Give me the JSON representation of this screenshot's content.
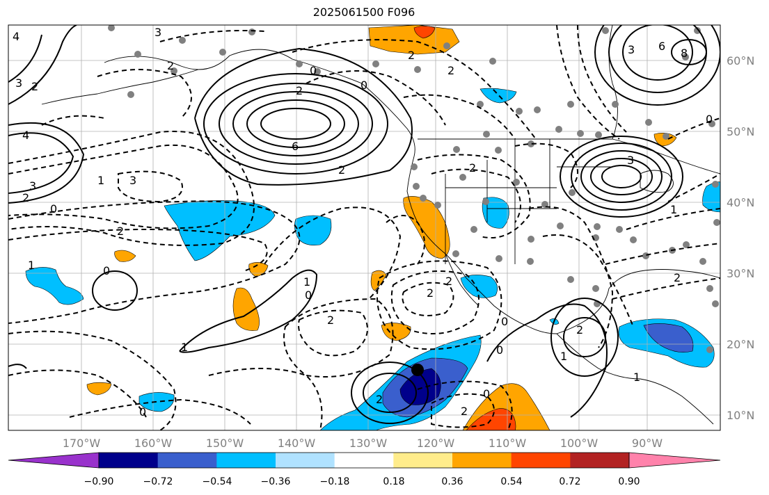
{
  "title": "2025061500 F096",
  "map": {
    "lon_ticks": [
      "170°W",
      "160°W",
      "150°W",
      "140°W",
      "130°W",
      "120°W",
      "110°W",
      "100°W",
      "90°W"
    ],
    "lat_ticks": [
      "60°N",
      "50°N",
      "40°N",
      "30°N",
      "20°N",
      "10°N"
    ],
    "contour_labels": [
      "4",
      "3",
      "2",
      "3",
      "2",
      "4",
      "3",
      "2",
      "0",
      "1",
      "3",
      "2",
      "1",
      "0",
      "2",
      "6",
      "2",
      "0",
      "2",
      "2",
      "0",
      "3",
      "6",
      "8",
      "3",
      "2",
      "1",
      "0",
      "1",
      "2",
      "2",
      "0",
      "2",
      "2",
      "2",
      "0",
      "2",
      "0",
      "1",
      "0",
      "2",
      "0",
      "1",
      "1"
    ],
    "marker": "storm-center"
  },
  "colorbar": {
    "colors": [
      "#9932cc",
      "#00008b",
      "#3a5fcd",
      "#00bfff",
      "#b0e2ff",
      "#ffffff",
      "#ffec8b",
      "#ffa500",
      "#ff4500",
      "#b22222",
      "#ff82ab"
    ],
    "tick_labels": [
      "−0.90",
      "−0.72",
      "−0.54",
      "−0.36",
      "−0.18",
      "0.18",
      "0.36",
      "0.54",
      "0.72",
      "0.90"
    ]
  }
}
